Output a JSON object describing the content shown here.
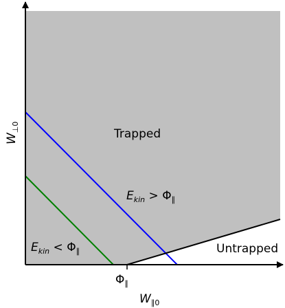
{
  "diagram": {
    "regions": {
      "trapped": {
        "label": "Trapped",
        "fill": "#c0c0c0"
      },
      "untrapped": {
        "label": "Untrapped",
        "fill": "#ffffff"
      }
    },
    "lines": {
      "blue": {
        "color": "#0000ff",
        "label_main": "E",
        "label_sub": "kin",
        "label_op": " > Φ",
        "label_op_sub": "∥"
      },
      "green": {
        "color": "#008000",
        "label_main": "E",
        "label_sub": "kin",
        "label_op": " < Φ",
        "label_op_sub": "∥"
      },
      "boundary": {
        "color": "#000000"
      }
    },
    "axes": {
      "x_label_main": "W",
      "x_label_sub": "∥0",
      "y_label_main": "W",
      "y_label_sub": "⊥0",
      "tick_label_main": "Φ",
      "tick_label_sub": "∥"
    }
  }
}
